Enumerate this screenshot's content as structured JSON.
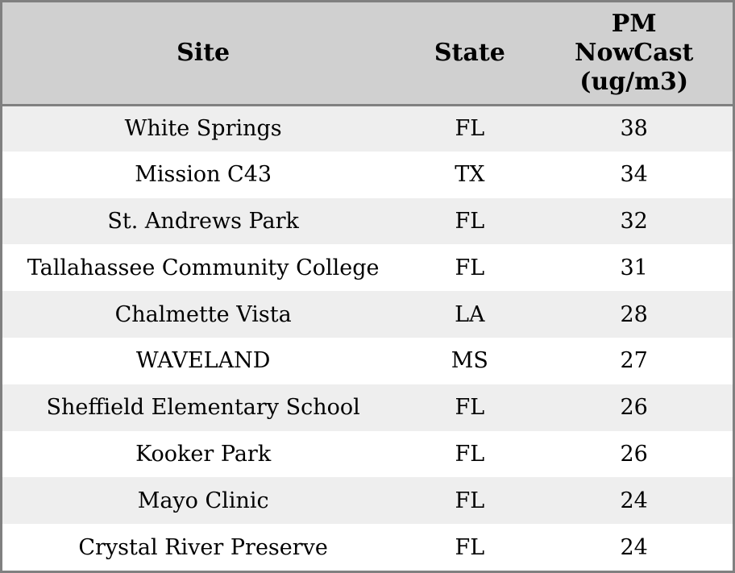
{
  "chart_data": {
    "type": "table",
    "columns": [
      "Site",
      "State",
      "PM NowCast (ug/m3)"
    ],
    "rows": [
      [
        "White Springs",
        "FL",
        38
      ],
      [
        "Mission C43",
        "TX",
        34
      ],
      [
        "St. Andrews Park",
        "FL",
        32
      ],
      [
        "Tallahassee Community College",
        "FL",
        31
      ],
      [
        "Chalmette Vista",
        "LA",
        28
      ],
      [
        "WAVELAND",
        "MS",
        27
      ],
      [
        "Sheffield Elementary School",
        "FL",
        26
      ],
      [
        "Kooker Park",
        "FL",
        26
      ],
      [
        "Mayo Clinic",
        "FL",
        24
      ],
      [
        "Crystal River Preserve",
        "FL",
        24
      ]
    ]
  },
  "header_display": {
    "site": "Site",
    "state": "State",
    "pm": "PM\nNowCast\n(ug/m3)"
  },
  "colors": {
    "header_bg": "#d0d0d0",
    "row_alt_bg": "#eeeeee",
    "row_bg": "#ffffff",
    "border": "#808080",
    "text": "#000000"
  }
}
